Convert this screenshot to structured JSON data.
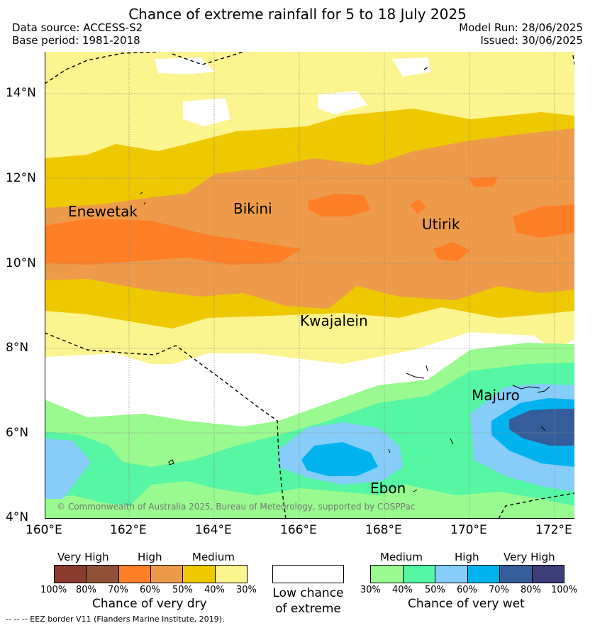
{
  "header": {
    "title": "Chance of extreme rainfall for 5 to 18 July 2025",
    "data_source": "Data source: ACCESS-S2",
    "base_period": "Base period: 1981-2018",
    "model_run": "Model Run: 28/06/2025",
    "issued": "Issued: 30/06/2025"
  },
  "map": {
    "lat_labels": [
      "14°N",
      "12°N",
      "10°N",
      "8°N",
      "6°N",
      "4°N"
    ],
    "lon_labels": [
      "160°E",
      "162°E",
      "164°E",
      "166°E",
      "168°E",
      "170°E",
      "172°E"
    ],
    "places": [
      "Enewetak",
      "Bikini",
      "Utirik",
      "Kwajalein",
      "Majuro",
      "Ebon"
    ],
    "copyright": "© Commonwealth of Australia 2025, Bureau of Meteorology, supported by COSPPac",
    "colors": {
      "dry_70": "#ff7f27",
      "dry_60": "#ed9b4a",
      "dry_50": "#eec800",
      "dry_40": "#fcf48e",
      "wet_40": "#99fa8f",
      "wet_50": "#55f6a4",
      "wet_60": "#86cdf9",
      "wet_70": "#00b3ee",
      "wet_80": "#355d99"
    }
  },
  "legend_dry": {
    "levels": [
      "Very High",
      "High",
      "Medium"
    ],
    "ticks": [
      "100%",
      "80%",
      "70%",
      "60%",
      "50%",
      "40%",
      "30%"
    ],
    "caption": "Chance of very dry",
    "colors": [
      "#8b3a2f",
      "#8f5239",
      "#ff7f27",
      "#ed9b4a",
      "#eec800",
      "#fcf48e"
    ]
  },
  "legend_low": {
    "caption_line1": "Low chance",
    "caption_line2": "of extreme"
  },
  "legend_wet": {
    "levels": [
      "Medium",
      "High",
      "Very High"
    ],
    "ticks": [
      "30%",
      "40%",
      "50%",
      "60%",
      "70%",
      "80%",
      "100%"
    ],
    "caption": "Chance of very wet",
    "colors": [
      "#99fa8f",
      "#55f6a4",
      "#86cdf9",
      "#00b3ee",
      "#355d99",
      "#3d3d79"
    ]
  },
  "footer": {
    "eez_note": "-- -- -- EEZ border V11 (Flanders Marine Institute, 2019)."
  }
}
